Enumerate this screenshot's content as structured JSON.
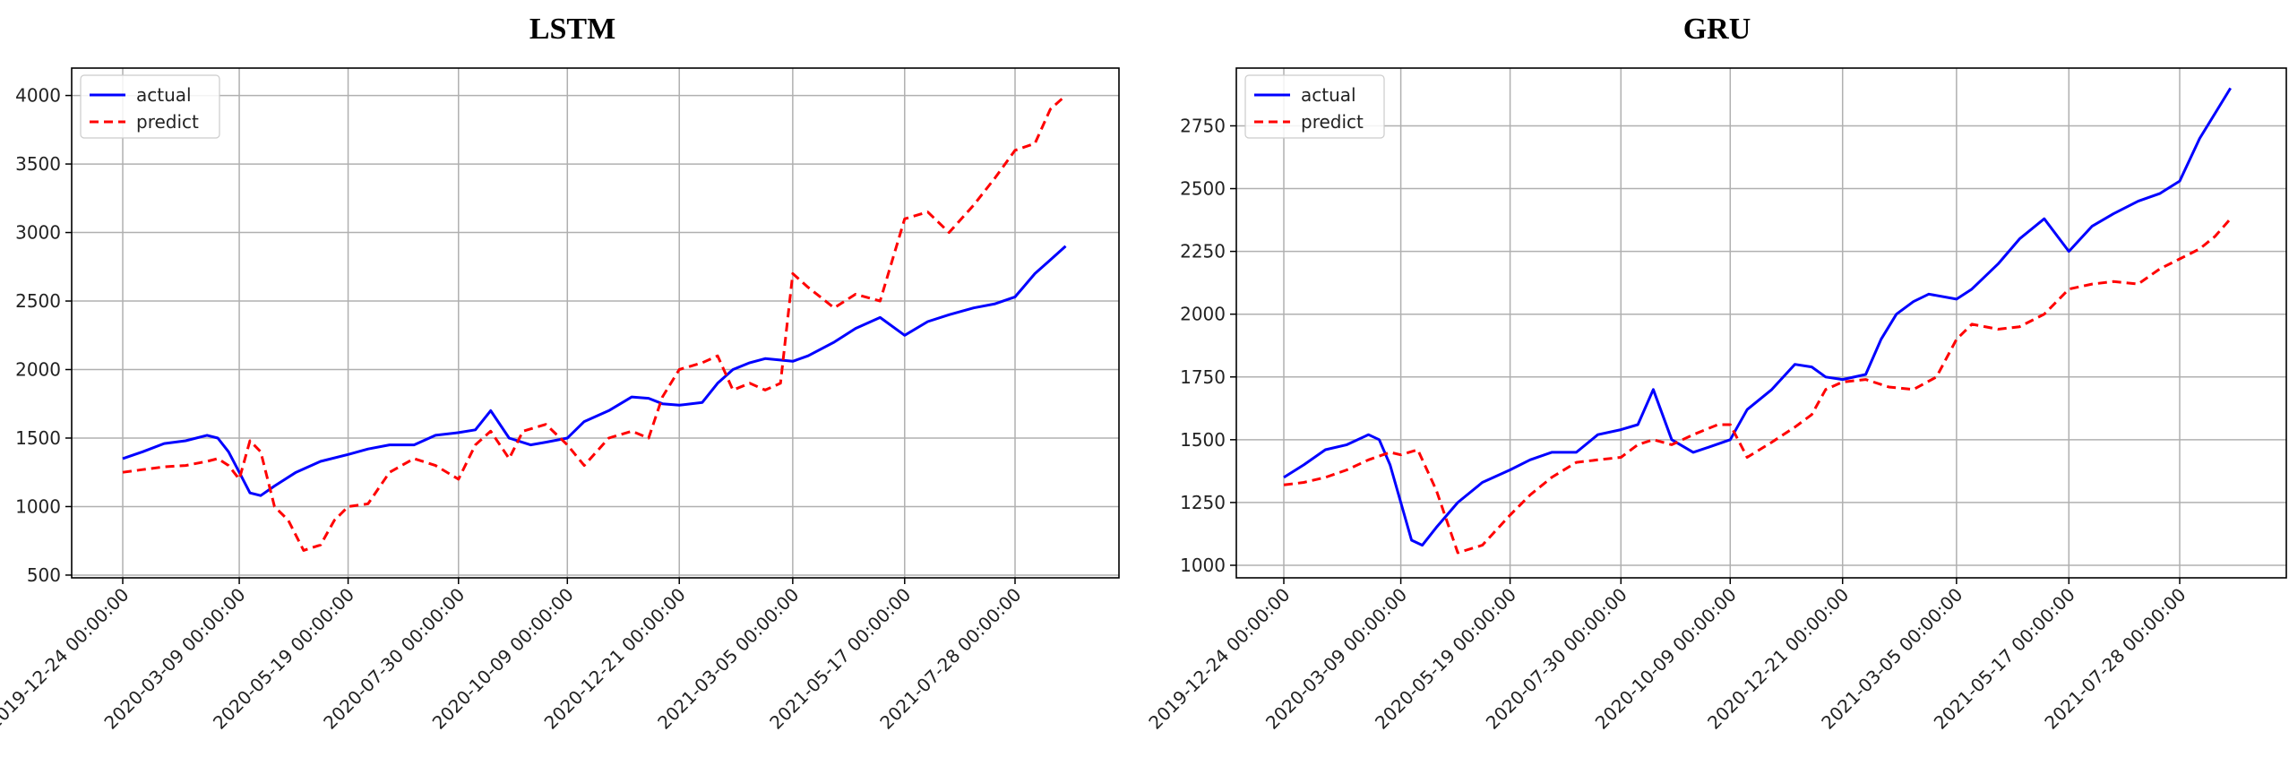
{
  "chart_data": [
    {
      "type": "line",
      "title": "LSTM",
      "xlabel": "",
      "ylabel": "",
      "x_ticks": [
        "2019-12-24 00:00:00",
        "2020-03-09 00:00:00",
        "2020-05-19 00:00:00",
        "2020-07-30 00:00:00",
        "2020-10-09 00:00:00",
        "2020-12-21 00:00:00",
        "2021-03-05 00:00:00",
        "2021-05-17 00:00:00",
        "2021-07-28 00:00:00"
      ],
      "y_ticks": [
        500,
        1000,
        1500,
        2000,
        2500,
        3000,
        3500,
        4000
      ],
      "ylim": [
        480,
        4200
      ],
      "grid": true,
      "legend": "top-left",
      "series": [
        {
          "name": "actual",
          "color": "#0000ff",
          "style": "solid",
          "x": [
            "2019-12-24",
            "2020-01-06",
            "2020-01-20",
            "2020-02-03",
            "2020-02-17",
            "2020-02-24",
            "2020-03-02",
            "2020-03-09",
            "2020-03-16",
            "2020-03-23",
            "2020-04-01",
            "2020-04-15",
            "2020-05-01",
            "2020-05-19",
            "2020-06-01",
            "2020-06-15",
            "2020-07-01",
            "2020-07-15",
            "2020-07-30",
            "2020-08-10",
            "2020-08-20",
            "2020-09-01",
            "2020-09-15",
            "2020-09-25",
            "2020-10-09",
            "2020-10-20",
            "2020-11-05",
            "2020-11-20",
            "2020-12-01",
            "2020-12-10",
            "2020-12-21",
            "2021-01-05",
            "2021-01-15",
            "2021-01-25",
            "2021-02-05",
            "2021-02-15",
            "2021-03-05",
            "2021-03-15",
            "2021-04-01",
            "2021-04-15",
            "2021-05-01",
            "2021-05-17",
            "2021-06-01",
            "2021-06-15",
            "2021-07-01",
            "2021-07-15",
            "2021-07-28",
            "2021-08-10",
            "2021-08-20",
            "2021-08-30"
          ],
          "y": [
            1350,
            1400,
            1460,
            1480,
            1520,
            1500,
            1400,
            1250,
            1100,
            1080,
            1150,
            1250,
            1330,
            1380,
            1420,
            1450,
            1450,
            1520,
            1540,
            1560,
            1700,
            1500,
            1450,
            1470,
            1500,
            1620,
            1700,
            1800,
            1790,
            1750,
            1740,
            1760,
            1900,
            2000,
            2050,
            2080,
            2060,
            2100,
            2200,
            2300,
            2380,
            2250,
            2350,
            2400,
            2450,
            2480,
            2530,
            2700,
            2800,
            2900
          ]
        },
        {
          "name": "predict",
          "color": "#ff0000",
          "style": "dashed",
          "x": [
            "2019-12-24",
            "2020-01-06",
            "2020-01-20",
            "2020-02-03",
            "2020-02-17",
            "2020-02-24",
            "2020-03-02",
            "2020-03-09",
            "2020-03-16",
            "2020-03-23",
            "2020-04-01",
            "2020-04-10",
            "2020-04-20",
            "2020-05-01",
            "2020-05-10",
            "2020-05-19",
            "2020-06-01",
            "2020-06-15",
            "2020-07-01",
            "2020-07-15",
            "2020-07-30",
            "2020-08-10",
            "2020-08-20",
            "2020-09-01",
            "2020-09-10",
            "2020-09-25",
            "2020-10-09",
            "2020-10-20",
            "2020-11-05",
            "2020-11-20",
            "2020-12-01",
            "2020-12-10",
            "2020-12-21",
            "2021-01-05",
            "2021-01-15",
            "2021-01-25",
            "2021-02-05",
            "2021-02-15",
            "2021-02-25",
            "2021-03-05",
            "2021-03-15",
            "2021-04-01",
            "2021-04-15",
            "2021-05-01",
            "2021-05-17",
            "2021-06-01",
            "2021-06-15",
            "2021-07-01",
            "2021-07-15",
            "2021-07-28",
            "2021-08-10",
            "2021-08-20",
            "2021-08-30"
          ],
          "y": [
            1250,
            1270,
            1290,
            1300,
            1330,
            1350,
            1300,
            1200,
            1480,
            1400,
            1000,
            900,
            680,
            720,
            900,
            1000,
            1020,
            1250,
            1350,
            1300,
            1200,
            1450,
            1550,
            1350,
            1550,
            1600,
            1450,
            1300,
            1500,
            1550,
            1500,
            1800,
            2000,
            2050,
            2100,
            1850,
            1900,
            1850,
            1900,
            2700,
            2600,
            2450,
            2550,
            2500,
            3100,
            3150,
            3000,
            3200,
            3400,
            3600,
            3650,
            3900,
            4000
          ]
        }
      ]
    },
    {
      "type": "line",
      "title": "GRU",
      "xlabel": "",
      "ylabel": "",
      "x_ticks": [
        "2019-12-24 00:00:00",
        "2020-03-09 00:00:00",
        "2020-05-19 00:00:00",
        "2020-07-30 00:00:00",
        "2020-10-09 00:00:00",
        "2020-12-21 00:00:00",
        "2021-03-05 00:00:00",
        "2021-05-17 00:00:00",
        "2021-07-28 00:00:00"
      ],
      "y_ticks": [
        1000,
        1250,
        1500,
        1750,
        2000,
        2250,
        2500,
        2750
      ],
      "ylim": [
        950,
        2980
      ],
      "grid": true,
      "legend": "top-left",
      "series": [
        {
          "name": "actual",
          "color": "#0000ff",
          "style": "solid",
          "x": [
            "2019-12-24",
            "2020-01-06",
            "2020-01-20",
            "2020-02-03",
            "2020-02-17",
            "2020-02-24",
            "2020-03-02",
            "2020-03-09",
            "2020-03-16",
            "2020-03-23",
            "2020-04-01",
            "2020-04-15",
            "2020-05-01",
            "2020-05-19",
            "2020-06-01",
            "2020-06-15",
            "2020-07-01",
            "2020-07-15",
            "2020-07-30",
            "2020-08-10",
            "2020-08-20",
            "2020-09-01",
            "2020-09-15",
            "2020-09-25",
            "2020-10-09",
            "2020-10-20",
            "2020-11-05",
            "2020-11-20",
            "2020-12-01",
            "2020-12-10",
            "2020-12-21",
            "2021-01-05",
            "2021-01-15",
            "2021-01-25",
            "2021-02-05",
            "2021-02-15",
            "2021-03-05",
            "2021-03-15",
            "2021-04-01",
            "2021-04-15",
            "2021-05-01",
            "2021-05-17",
            "2021-06-01",
            "2021-06-15",
            "2021-07-01",
            "2021-07-15",
            "2021-07-28",
            "2021-08-10",
            "2021-08-20",
            "2021-08-30"
          ],
          "y": [
            1350,
            1400,
            1460,
            1480,
            1520,
            1500,
            1400,
            1250,
            1100,
            1080,
            1150,
            1250,
            1330,
            1380,
            1420,
            1450,
            1450,
            1520,
            1540,
            1560,
            1700,
            1500,
            1450,
            1470,
            1500,
            1620,
            1700,
            1800,
            1790,
            1750,
            1740,
            1760,
            1900,
            2000,
            2050,
            2080,
            2060,
            2100,
            2200,
            2300,
            2380,
            2250,
            2350,
            2400,
            2450,
            2480,
            2530,
            2700,
            2800,
            2900
          ]
        },
        {
          "name": "predict",
          "color": "#ff0000",
          "style": "dashed",
          "x": [
            "2019-12-24",
            "2020-01-06",
            "2020-01-20",
            "2020-02-03",
            "2020-02-17",
            "2020-03-02",
            "2020-03-09",
            "2020-03-20",
            "2020-04-01",
            "2020-04-15",
            "2020-05-01",
            "2020-05-19",
            "2020-06-01",
            "2020-06-15",
            "2020-07-01",
            "2020-07-15",
            "2020-07-30",
            "2020-08-10",
            "2020-08-20",
            "2020-09-01",
            "2020-09-15",
            "2020-10-01",
            "2020-10-09",
            "2020-10-20",
            "2020-11-05",
            "2020-11-20",
            "2020-12-01",
            "2020-12-10",
            "2020-12-21",
            "2021-01-05",
            "2021-01-20",
            "2021-02-05",
            "2021-02-20",
            "2021-03-05",
            "2021-03-15",
            "2021-04-01",
            "2021-04-15",
            "2021-05-01",
            "2021-05-17",
            "2021-06-01",
            "2021-06-15",
            "2021-07-01",
            "2021-07-15",
            "2021-07-28",
            "2021-08-10",
            "2021-08-20",
            "2021-08-30"
          ],
          "y": [
            1320,
            1330,
            1350,
            1380,
            1420,
            1450,
            1440,
            1460,
            1300,
            1050,
            1080,
            1200,
            1280,
            1350,
            1410,
            1420,
            1430,
            1480,
            1500,
            1480,
            1520,
            1560,
            1560,
            1430,
            1490,
            1550,
            1600,
            1700,
            1730,
            1740,
            1710,
            1700,
            1750,
            1900,
            1960,
            1940,
            1950,
            2000,
            2100,
            2120,
            2130,
            2120,
            2180,
            2220,
            2260,
            2310,
            2380
          ]
        }
      ]
    }
  ]
}
